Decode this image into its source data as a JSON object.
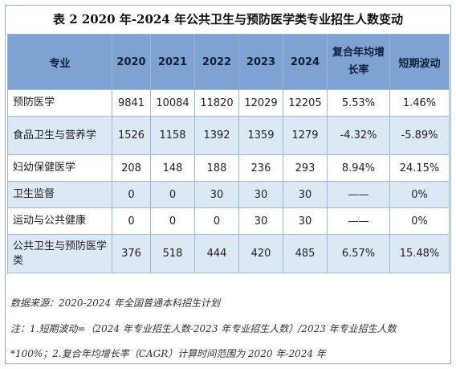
{
  "title": "表 2 2020 年-2024 年公共卫生与预防医学类专业招生人数变动",
  "columns": [
    "专业",
    "2020",
    "2021",
    "2022",
    "2023",
    "2024",
    "复合年均增长率",
    "短期波动"
  ],
  "rows": [
    {
      "name": "预防医学",
      "values": [
        "9841",
        "10084",
        "11820",
        "12029",
        "12205",
        "5.53%",
        "1.46%"
      ]
    },
    {
      "name": "食品卫生与营养学",
      "values": [
        "1526",
        "1158",
        "1392",
        "1359",
        "1279",
        "-4.32%",
        "-5.89%"
      ]
    },
    {
      "name": "妇幼保健医学",
      "values": [
        "208",
        "148",
        "188",
        "236",
        "293",
        "8.94%",
        "24.15%"
      ]
    },
    {
      "name": "卫生监督",
      "values": [
        "0",
        "0",
        "30",
        "30",
        "30",
        "——",
        "0%"
      ]
    },
    {
      "name": "运动与公共健康",
      "values": [
        "0",
        "0",
        "0",
        "30",
        "30",
        "——",
        "0%"
      ]
    },
    {
      "name": "公共卫生与预防医学类",
      "values": [
        "376",
        "518",
        "444",
        "420",
        "485",
        "6.57%",
        "15.48%"
      ]
    }
  ],
  "source": "数据来源：2020-2024 年全国普通本科招生计划",
  "note_line1": "注：1.短期波动=（2024 年专业招生人数-2023 年专业招生人数）/2023 年专业招生人数",
  "note_line2": "*100%；2.复合年均增长率（CAGR）计算时间范围为 2020 年-2024 年"
}
